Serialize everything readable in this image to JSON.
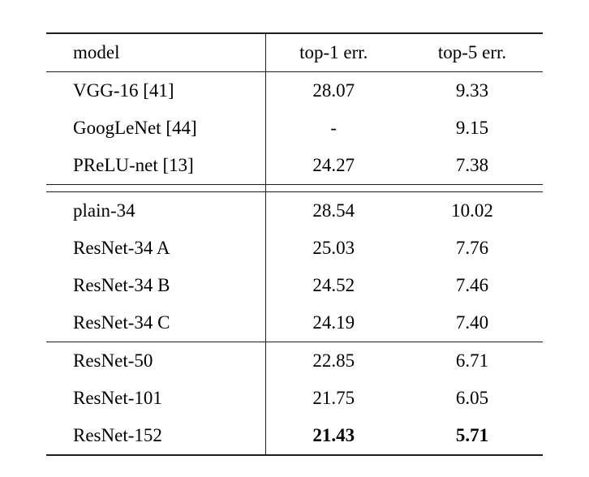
{
  "chart_data": {
    "type": "table",
    "columns": [
      "model",
      "top-1 err.",
      "top-5 err."
    ],
    "sections": [
      {
        "rows": [
          {
            "model": "VGG-16 [41]",
            "top1": "28.07",
            "top5": "9.33",
            "bold": false
          },
          {
            "model": "GoogLeNet [44]",
            "top1": "-",
            "top5": "9.15",
            "bold": false
          },
          {
            "model": "PReLU-net [13]",
            "top1": "24.27",
            "top5": "7.38",
            "bold": false
          }
        ]
      },
      {
        "rows": [
          {
            "model": "plain-34",
            "top1": "28.54",
            "top5": "10.02",
            "bold": false
          },
          {
            "model": "ResNet-34 A",
            "top1": "25.03",
            "top5": "7.76",
            "bold": false
          },
          {
            "model": "ResNet-34 B",
            "top1": "24.52",
            "top5": "7.46",
            "bold": false
          },
          {
            "model": "ResNet-34 C",
            "top1": "24.19",
            "top5": "7.40",
            "bold": false
          }
        ]
      },
      {
        "rows": [
          {
            "model": "ResNet-50",
            "top1": "22.85",
            "top5": "6.71",
            "bold": false
          },
          {
            "model": "ResNet-101",
            "top1": "21.75",
            "top5": "6.05",
            "bold": false
          },
          {
            "model": "ResNet-152",
            "top1": "21.43",
            "top5": "5.71",
            "bold": true
          }
        ]
      }
    ]
  },
  "colors": {
    "text": "#000000",
    "rule": "#1e1e1e",
    "background": "#ffffff"
  }
}
